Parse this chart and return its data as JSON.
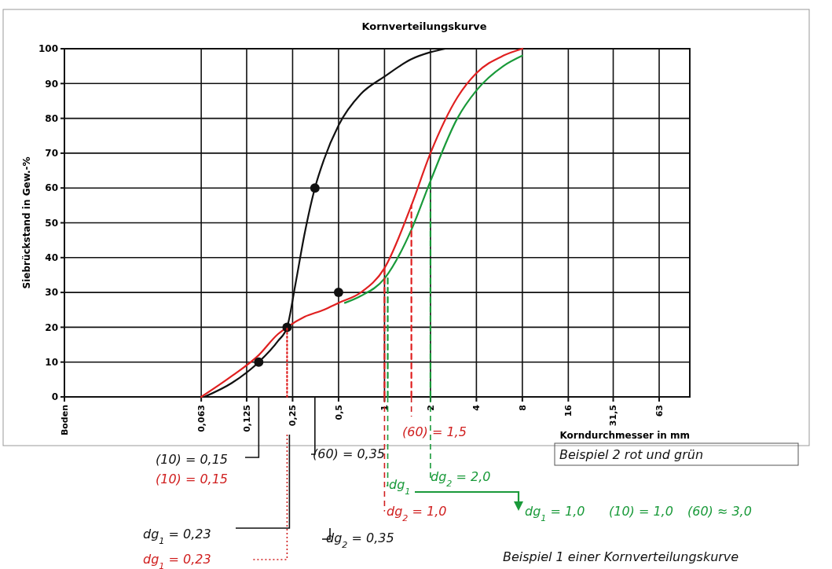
{
  "chart_data": {
    "type": "line",
    "title": "Kornverteilungskurve",
    "xlabel": "Korndurchmesser in mm",
    "ylabel": "Siebrückstand in Gew.-%",
    "log": "x",
    "xlim": [
      0.008,
      100
    ],
    "xticks": [
      {
        "value": 0.008,
        "label": "Boden"
      },
      {
        "value": 0.063,
        "label": "0,063"
      },
      {
        "value": 0.125,
        "label": "0,125"
      },
      {
        "value": 0.25,
        "label": "0,25"
      },
      {
        "value": 0.5,
        "label": "0,5"
      },
      1,
      2,
      4,
      8,
      16,
      {
        "value": 31.5,
        "label": "31,5"
      },
      63
    ],
    "ylim": [
      0,
      100
    ],
    "yticks": [
      0,
      10,
      20,
      30,
      40,
      50,
      60,
      70,
      80,
      90,
      100
    ],
    "grid": true,
    "series": [
      {
        "color": "#111111",
        "x": [
          0.066,
          0.1,
          0.15,
          0.2,
          0.23,
          0.26,
          0.3,
          0.35,
          0.4,
          0.5,
          0.7,
          1,
          1.5,
          2,
          2.5
        ],
        "values": [
          0,
          4,
          10,
          16,
          20,
          32,
          47,
          60,
          68,
          78,
          87,
          92,
          97,
          99,
          100
        ]
      },
      {
        "color": "#e02020",
        "x": [
          0.063,
          0.1,
          0.15,
          0.2,
          0.23,
          0.3,
          0.4,
          0.5,
          0.7,
          1,
          1.5,
          2,
          3,
          4,
          6,
          8
        ],
        "values": [
          0,
          6,
          12,
          18,
          20,
          23,
          25,
          27,
          30,
          37,
          55,
          70,
          86,
          93,
          98,
          100
        ]
      },
      {
        "color": "#1a9a3a",
        "x": [
          0.55,
          0.7,
          1,
          1.5,
          2,
          3,
          4,
          6,
          8
        ],
        "values": [
          27,
          29,
          34,
          48,
          62,
          80,
          88,
          95,
          98
        ]
      },
      {
        "type": "scatter",
        "marker": "circle",
        "color": "#111111",
        "x": [
          0.15,
          0.23,
          0.35,
          0.5
        ],
        "values": [
          10,
          20,
          60,
          30
        ]
      },
      {
        "color": "#e02020",
        "line_style": "dotted",
        "x": [
          0.23,
          0.23
        ],
        "values": [
          0,
          20
        ]
      },
      {
        "color": "#e02020",
        "line_style": "dashed",
        "x": [
          1,
          1
        ],
        "values": [
          0,
          37
        ]
      },
      {
        "color": "#1a9a3a",
        "line_style": "dashed",
        "x": [
          1.05,
          1.05
        ],
        "values": [
          0,
          35
        ]
      },
      {
        "color": "#e02020",
        "line_style": "dashed",
        "x": [
          1.5,
          1.5
        ],
        "values": [
          0,
          55
        ]
      },
      {
        "color": "#1a9a3a",
        "line_style": "dashed",
        "x": [
          2,
          2
        ],
        "values": [
          0,
          62
        ]
      }
    ],
    "annotations": [
      "(10) = 0,15",
      "(10) = 0,15",
      "dg$_{1}$ = 0,23",
      "dg$_{1}$ = 0,23",
      "(60) = 0,35",
      "dg$_{2}$ = 0,35",
      "(60) = 1,5",
      "dg$_{1}$",
      "dg$_{2}$ = 2,0",
      "dg$_{2}$ = 1,0",
      "dg$_{1}$ = 1,0",
      "(10) = 1,0",
      "(60) ≈ 3,0",
      "Beispiel 2 rot und grün",
      "Beispiel 1 einer Kornverteilungskurve"
    ]
  }
}
